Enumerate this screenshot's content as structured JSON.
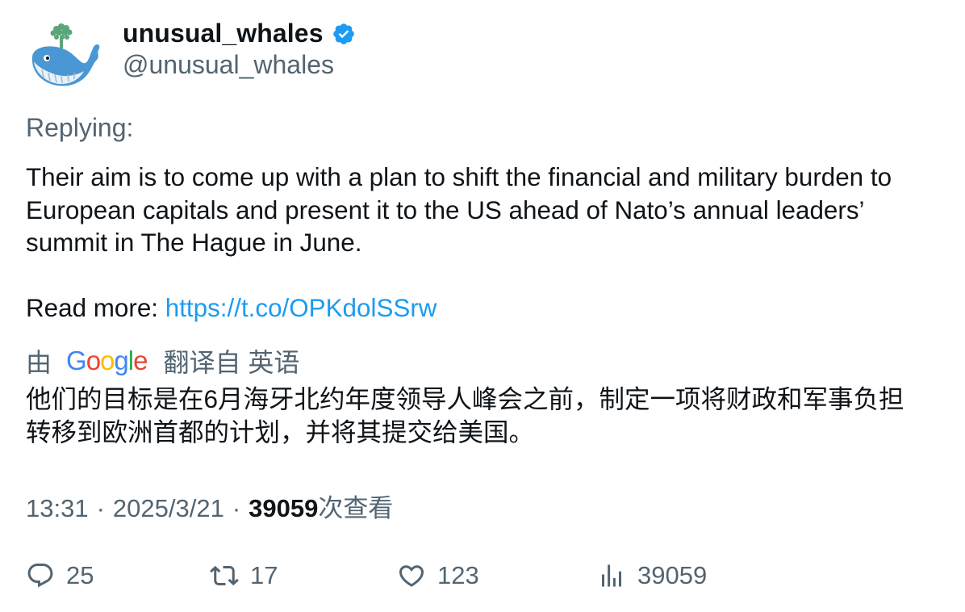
{
  "author": {
    "display_name": "unusual_whales",
    "handle": "@unusual_whales",
    "verified_icon": "verified-badge-icon",
    "avatar_icon": "whale-avatar-icon"
  },
  "replying_label": "Replying:",
  "body": {
    "lines": [
      "Their aim is to come up with a plan to shift the financial and military burden to",
      "European capitals and present it to the US ahead of Nato’s annual leaders’",
      "summit in The Hague in June."
    ],
    "read_more_label": "Read more: ",
    "link_text": "https://t.co/OPKdolSSrw"
  },
  "translation": {
    "by_label": "由",
    "google_letters": [
      "G",
      "o",
      "o",
      "g",
      "l",
      "e"
    ],
    "source_label": "翻译自 英语",
    "lines": [
      "他们的目标是在6月海牙北约年度领导人峰会之前，制定一项将财政和军事负担",
      "转移到欧洲首都的计划，并将其提交给美国。"
    ]
  },
  "meta": {
    "time": "13:31",
    "separator": "·",
    "date": "2025/3/21",
    "views_count": "39059",
    "views_label": "次查看"
  },
  "actions": {
    "replies": "25",
    "retweets": "17",
    "likes": "123",
    "views": "39059"
  },
  "colors": {
    "text": "#0f1419",
    "secondary": "#536471",
    "link": "#1d9bf0",
    "verified": "#1d9bf0"
  }
}
